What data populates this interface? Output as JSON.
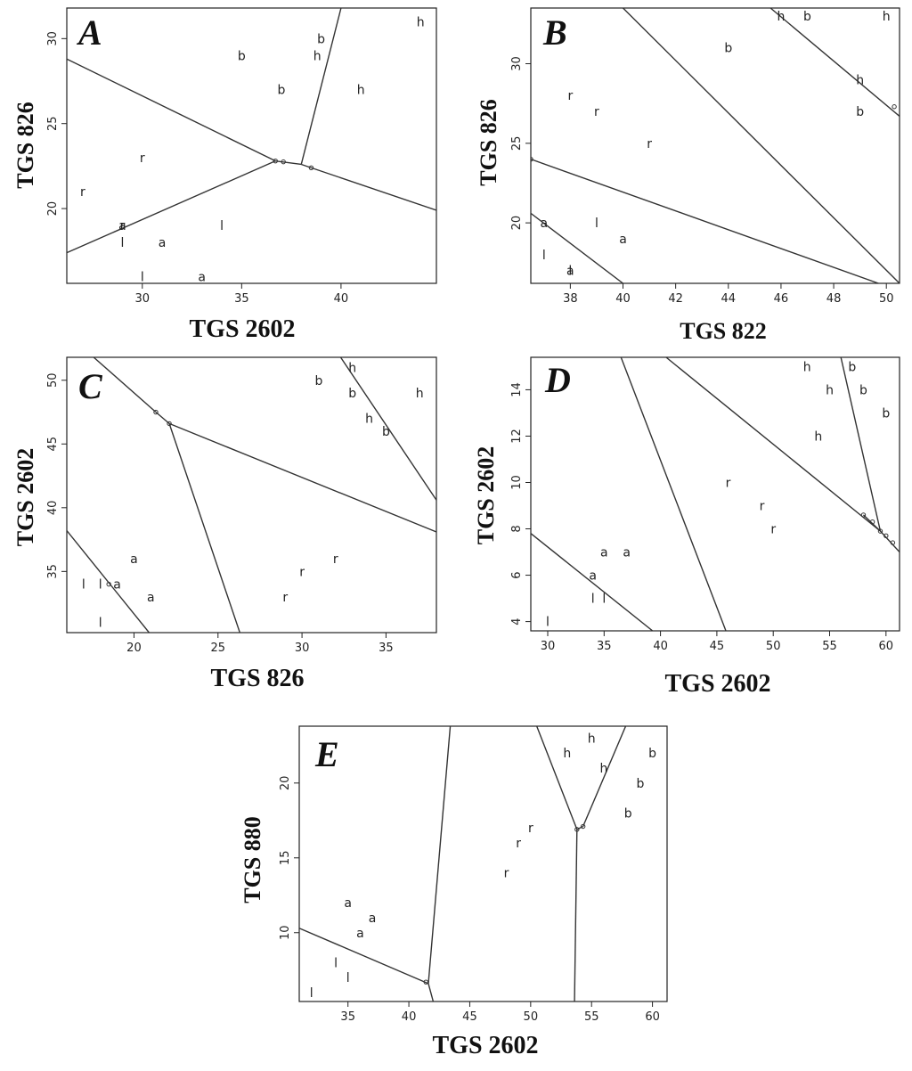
{
  "chart_data": [
    {
      "type": "scatter",
      "title": "A",
      "xlabel": "TGS 2602",
      "ylabel": "TGS 826",
      "xlim": [
        26.2,
        44.8
      ],
      "ylim": [
        15.6,
        31.8
      ],
      "xticks": [
        30,
        35,
        40
      ],
      "yticks": [
        20,
        25,
        30
      ],
      "points": [
        {
          "x": 27,
          "y": 21,
          "label": "r"
        },
        {
          "x": 30,
          "y": 23,
          "label": "r"
        },
        {
          "x": 29,
          "y": 19,
          "label": "r"
        },
        {
          "x": 29,
          "y": 19,
          "label": "a"
        },
        {
          "x": 31,
          "y": 18,
          "label": "a"
        },
        {
          "x": 33,
          "y": 16,
          "label": "a"
        },
        {
          "x": 29,
          "y": 18,
          "label": "l"
        },
        {
          "x": 30,
          "y": 16,
          "label": "l"
        },
        {
          "x": 34,
          "y": 19,
          "label": "l"
        },
        {
          "x": 35,
          "y": 29,
          "label": "b"
        },
        {
          "x": 37,
          "y": 27,
          "label": "b"
        },
        {
          "x": 39,
          "y": 30,
          "label": "b"
        },
        {
          "x": 38.8,
          "y": 29,
          "label": "h"
        },
        {
          "x": 41,
          "y": 27,
          "label": "h"
        },
        {
          "x": 44,
          "y": 31,
          "label": "h"
        }
      ],
      "boundaries": [
        [
          [
            26.2,
            28.8
          ],
          [
            36.7,
            22.8
          ]
        ],
        [
          [
            26.2,
            17.4
          ],
          [
            36.7,
            22.8
          ]
        ],
        [
          [
            36.7,
            22.8
          ],
          [
            38,
            22.6
          ]
        ],
        [
          [
            38,
            22.6
          ],
          [
            40,
            31.8
          ]
        ],
        [
          [
            38,
            22.6
          ],
          [
            44.8,
            19.9
          ]
        ]
      ],
      "vertices": [
        [
          36.7,
          22.8
        ],
        [
          37.1,
          22.75
        ],
        [
          38.5,
          22.4
        ]
      ]
    },
    {
      "type": "scatter",
      "title": "B",
      "xlabel": "TGS 822",
      "ylabel": "TGS 826",
      "xlim": [
        36.5,
        50.5
      ],
      "ylim": [
        16.2,
        33.5
      ],
      "xticks": [
        38,
        40,
        42,
        44,
        46,
        48,
        50
      ],
      "yticks": [
        20,
        25,
        30
      ],
      "points": [
        {
          "x": 38,
          "y": 28,
          "label": "r"
        },
        {
          "x": 39,
          "y": 27,
          "label": "r"
        },
        {
          "x": 41,
          "y": 25,
          "label": "r"
        },
        {
          "x": 37,
          "y": 20,
          "label": "a"
        },
        {
          "x": 40,
          "y": 19,
          "label": "a"
        },
        {
          "x": 38,
          "y": 17,
          "label": "a"
        },
        {
          "x": 37,
          "y": 18,
          "label": "l"
        },
        {
          "x": 38,
          "y": 17,
          "label": "l"
        },
        {
          "x": 39,
          "y": 20,
          "label": "l"
        },
        {
          "x": 44,
          "y": 31,
          "label": "b"
        },
        {
          "x": 47,
          "y": 33,
          "label": "b"
        },
        {
          "x": 49,
          "y": 27,
          "label": "b"
        },
        {
          "x": 46,
          "y": 33,
          "label": "h"
        },
        {
          "x": 49,
          "y": 29,
          "label": "h"
        },
        {
          "x": 50,
          "y": 33,
          "label": "h"
        }
      ],
      "boundaries": [
        [
          [
            36.5,
            20.6
          ],
          [
            40,
            16.2
          ]
        ],
        [
          [
            36.5,
            24
          ],
          [
            49.7,
            16.2
          ]
        ],
        [
          [
            40,
            33.5
          ],
          [
            50.5,
            16.2
          ]
        ],
        [
          [
            45.6,
            33.5
          ],
          [
            50.5,
            26.7
          ]
        ]
      ],
      "vertices": [
        [
          36.5,
          24
        ],
        [
          50.3,
          27.3
        ]
      ]
    },
    {
      "type": "scatter",
      "title": "C",
      "xlabel": "TGS 826",
      "ylabel": "TGS 2602",
      "xlim": [
        16,
        38
      ],
      "ylim": [
        30.2,
        51.8
      ],
      "xticks": [
        20,
        25,
        30,
        35
      ],
      "yticks": [
        35,
        40,
        45,
        50
      ],
      "points": [
        {
          "x": 20,
          "y": 36,
          "label": "a"
        },
        {
          "x": 19,
          "y": 34,
          "label": "a"
        },
        {
          "x": 21,
          "y": 33,
          "label": "a"
        },
        {
          "x": 17,
          "y": 34,
          "label": "l"
        },
        {
          "x": 18,
          "y": 34,
          "label": "l"
        },
        {
          "x": 18,
          "y": 31,
          "label": "l"
        },
        {
          "x": 29,
          "y": 33,
          "label": "r"
        },
        {
          "x": 30,
          "y": 35,
          "label": "r"
        },
        {
          "x": 32,
          "y": 36,
          "label": "r"
        },
        {
          "x": 31,
          "y": 50,
          "label": "b"
        },
        {
          "x": 33,
          "y": 49,
          "label": "b"
        },
        {
          "x": 35,
          "y": 46,
          "label": "b"
        },
        {
          "x": 33,
          "y": 51,
          "label": "h"
        },
        {
          "x": 34,
          "y": 47,
          "label": "h"
        },
        {
          "x": 37,
          "y": 49,
          "label": "h"
        }
      ],
      "boundaries": [
        [
          [
            17.6,
            51.8
          ],
          [
            21.3,
            47.5
          ]
        ],
        [
          [
            21.3,
            47.5
          ],
          [
            22.1,
            46.6
          ]
        ],
        [
          [
            22.1,
            46.6
          ],
          [
            38,
            38.1
          ]
        ],
        [
          [
            22.1,
            46.6
          ],
          [
            26.3,
            30.2
          ]
        ],
        [
          [
            16,
            38.2
          ],
          [
            20.9,
            30.2
          ]
        ],
        [
          [
            32.3,
            51.8
          ],
          [
            38,
            40.6
          ]
        ]
      ],
      "vertices": [
        [
          21.3,
          47.5
        ],
        [
          22.1,
          46.6
        ],
        [
          18.5,
          34
        ]
      ]
    },
    {
      "type": "scatter",
      "title": "D",
      "xlabel": "TGS 2602",
      "ylabel": "TGS 2602",
      "xlim": [
        28.5,
        61.2
      ],
      "ylim": [
        3.6,
        15.4
      ],
      "xticks": [
        30,
        35,
        40,
        45,
        50,
        55,
        60
      ],
      "yticks": [
        4,
        6,
        8,
        10,
        12,
        14
      ],
      "points": [
        {
          "x": 35,
          "y": 7,
          "label": "a"
        },
        {
          "x": 37,
          "y": 7,
          "label": "a"
        },
        {
          "x": 34,
          "y": 6,
          "label": "a"
        },
        {
          "x": 34,
          "y": 5,
          "label": "l"
        },
        {
          "x": 35,
          "y": 5,
          "label": "l"
        },
        {
          "x": 30,
          "y": 4,
          "label": "l"
        },
        {
          "x": 46,
          "y": 10,
          "label": "r"
        },
        {
          "x": 49,
          "y": 9,
          "label": "r"
        },
        {
          "x": 50,
          "y": 8,
          "label": "r"
        },
        {
          "x": 57,
          "y": 15,
          "label": "b"
        },
        {
          "x": 58,
          "y": 14,
          "label": "b"
        },
        {
          "x": 60,
          "y": 13,
          "label": "b"
        },
        {
          "x": 53,
          "y": 15,
          "label": "h"
        },
        {
          "x": 55,
          "y": 14,
          "label": "h"
        },
        {
          "x": 54,
          "y": 12,
          "label": "h"
        }
      ],
      "boundaries": [
        [
          [
            28.5,
            7.8
          ],
          [
            39.3,
            3.6
          ]
        ],
        [
          [
            36.5,
            15.4
          ],
          [
            45.8,
            3.6
          ]
        ],
        [
          [
            40.5,
            15.4
          ],
          [
            59.5,
            7.9
          ]
        ],
        [
          [
            59.5,
            7.9
          ],
          [
            61.2,
            7
          ]
        ],
        [
          [
            56,
            15.4
          ],
          [
            59.5,
            7.9
          ]
        ],
        [
          [
            58,
            8.6
          ],
          [
            59.5,
            7.9
          ]
        ]
      ],
      "vertices": [
        [
          58,
          8.6
        ],
        [
          58.8,
          8.3
        ],
        [
          59.5,
          7.9
        ],
        [
          60,
          7.7
        ],
        [
          60.6,
          7.4
        ]
      ]
    },
    {
      "type": "scatter",
      "title": "E",
      "xlabel": "TGS 2602",
      "ylabel": "TGS 880",
      "xlim": [
        31,
        61.2
      ],
      "ylim": [
        5.4,
        23.8
      ],
      "xticks": [
        35,
        40,
        45,
        50,
        55,
        60
      ],
      "yticks": [
        10,
        15,
        20
      ],
      "points": [
        {
          "x": 35,
          "y": 12,
          "label": "a"
        },
        {
          "x": 37,
          "y": 11,
          "label": "a"
        },
        {
          "x": 36,
          "y": 10,
          "label": "a"
        },
        {
          "x": 34,
          "y": 8,
          "label": "l"
        },
        {
          "x": 35,
          "y": 7,
          "label": "l"
        },
        {
          "x": 32,
          "y": 6,
          "label": "l"
        },
        {
          "x": 48,
          "y": 14,
          "label": "r"
        },
        {
          "x": 49,
          "y": 16,
          "label": "r"
        },
        {
          "x": 50,
          "y": 17,
          "label": "r"
        },
        {
          "x": 60,
          "y": 22,
          "label": "b"
        },
        {
          "x": 59,
          "y": 20,
          "label": "b"
        },
        {
          "x": 58,
          "y": 18,
          "label": "b"
        },
        {
          "x": 53,
          "y": 22,
          "label": "h"
        },
        {
          "x": 55,
          "y": 23,
          "label": "h"
        },
        {
          "x": 56,
          "y": 21,
          "label": "h"
        }
      ],
      "boundaries": [
        [
          [
            31,
            10.3
          ],
          [
            41.6,
            6.6
          ]
        ],
        [
          [
            41.6,
            6.6
          ],
          [
            42,
            5.4
          ]
        ],
        [
          [
            41.6,
            6.6
          ],
          [
            43.4,
            23.8
          ]
        ],
        [
          [
            50.5,
            23.8
          ],
          [
            53.8,
            16.9
          ]
        ],
        [
          [
            53.8,
            16.9
          ],
          [
            54.3,
            17.1
          ]
        ],
        [
          [
            54.3,
            17.1
          ],
          [
            57.8,
            23.8
          ]
        ],
        [
          [
            53.8,
            16.9
          ],
          [
            53.6,
            5.4
          ]
        ]
      ],
      "vertices": [
        [
          41.4,
          6.7
        ],
        [
          53.8,
          16.9
        ],
        [
          54.3,
          17.1
        ]
      ]
    }
  ]
}
